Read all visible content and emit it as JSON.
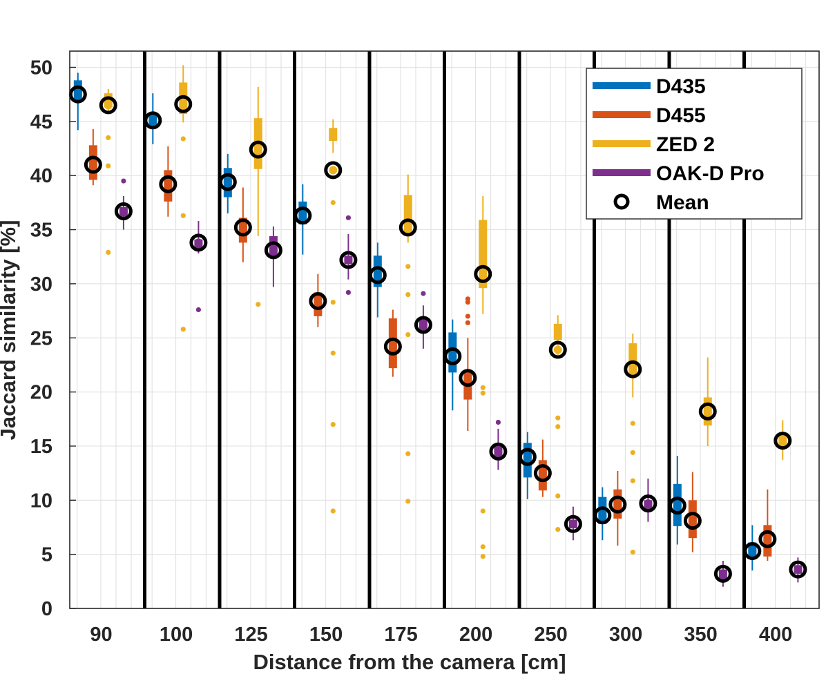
{
  "chart_data": {
    "type": "box",
    "xlabel": "Distance from the camera [cm]",
    "ylabel": "Jaccard similarity [%]",
    "ylim": [
      0,
      51.5
    ],
    "yticks": [
      0,
      5,
      10,
      15,
      20,
      25,
      30,
      35,
      40,
      45,
      50
    ],
    "grid": true,
    "legend_position": "top-right",
    "mean_label": "Mean",
    "categories": [
      "90",
      "100",
      "125",
      "150",
      "175",
      "200",
      "250",
      "300",
      "350",
      "400"
    ],
    "series": [
      {
        "name": "D435",
        "color": "#0072BD",
        "means": [
          47.5,
          45.1,
          39.4,
          36.3,
          30.8,
          23.3,
          14.0,
          8.6,
          9.5,
          5.3
        ],
        "q1": [
          46.8,
          44.5,
          38.0,
          35.5,
          29.7,
          21.8,
          12.1,
          7.8,
          7.6,
          4.8
        ],
        "q3": [
          48.8,
          45.7,
          40.7,
          37.6,
          32.6,
          25.5,
          15.3,
          10.3,
          11.5,
          6.1
        ],
        "whisker_low": [
          44.2,
          42.9,
          36.5,
          32.7,
          26.9,
          18.3,
          10.1,
          6.3,
          5.9,
          3.5
        ],
        "whisker_high": [
          49.5,
          47.6,
          42.0,
          39.2,
          33.8,
          26.7,
          16.3,
          11.2,
          14.1,
          7.7
        ],
        "outliers": [
          [],
          [],
          [],
          [],
          [],
          [],
          [],
          [],
          [],
          []
        ]
      },
      {
        "name": "D455",
        "color": "#D95319",
        "means": [
          41.0,
          39.2,
          35.2,
          28.4,
          24.2,
          21.3,
          12.5,
          9.6,
          8.1,
          6.4
        ],
        "q1": [
          39.6,
          37.6,
          33.8,
          27.0,
          22.2,
          19.3,
          10.9,
          8.3,
          6.5,
          4.8
        ],
        "q3": [
          42.8,
          40.5,
          36.1,
          29.2,
          26.8,
          22.0,
          13.7,
          11.0,
          10.0,
          7.7
        ],
        "whisker_low": [
          39.1,
          36.2,
          32.0,
          26.0,
          21.4,
          16.4,
          10.3,
          5.8,
          5.2,
          4.4
        ],
        "whisker_high": [
          44.3,
          42.7,
          38.9,
          30.9,
          27.6,
          25.0,
          15.6,
          12.7,
          12.6,
          11.0
        ],
        "outliers": [
          [],
          [],
          [],
          [],
          [],
          [
            28.3,
            28.6,
            27.0,
            26.4
          ],
          [],
          [],
          [],
          []
        ]
      },
      {
        "name": "ZED 2",
        "color": "#EDB120",
        "means": [
          46.5,
          46.6,
          42.4,
          40.5,
          35.2,
          30.9,
          23.9,
          22.1,
          18.2,
          15.5
        ],
        "q1": [
          46.3,
          45.7,
          40.6,
          43.2,
          34.5,
          29.6,
          24.8,
          21.6,
          16.9,
          15.0
        ],
        "q3": [
          47.6,
          48.6,
          45.3,
          44.4,
          38.2,
          35.9,
          26.3,
          24.5,
          19.5,
          16.2
        ],
        "whisker_low": [
          45.9,
          44.9,
          34.4,
          42.1,
          33.8,
          27.2,
          23.4,
          19.5,
          15.0,
          13.7
        ],
        "whisker_high": [
          48.0,
          50.2,
          48.2,
          45.2,
          40.1,
          38.1,
          27.1,
          25.4,
          23.2,
          17.4
        ],
        "outliers": [
          [
            43.5,
            40.9,
            32.9
          ],
          [
            43.4,
            36.3,
            25.8
          ],
          [
            28.1
          ],
          [
            37.5,
            28.3,
            23.6,
            17.0,
            9.0
          ],
          [
            31.6,
            29.0,
            25.3,
            14.3,
            9.9
          ],
          [
            20.4,
            19.9,
            9.0,
            5.7,
            4.8
          ],
          [
            17.6,
            16.8,
            10.4,
            7.3
          ],
          [
            17.1,
            14.4,
            11.8,
            5.2
          ],
          [],
          []
        ]
      },
      {
        "name": "OAK-D Pro",
        "color": "#7E2F8E",
        "means": [
          36.7,
          33.8,
          33.1,
          32.2,
          26.2,
          14.5,
          7.8,
          9.7,
          3.2,
          3.6
        ],
        "q1": [
          36.2,
          33.3,
          32.4,
          31.8,
          25.7,
          14.0,
          7.4,
          9.2,
          2.7,
          3.2
        ],
        "q3": [
          37.1,
          34.1,
          34.4,
          32.6,
          26.7,
          15.1,
          8.2,
          10.0,
          3.6,
          4.0
        ],
        "whisker_low": [
          35.0,
          32.8,
          29.7,
          30.4,
          24.0,
          12.8,
          6.3,
          8.0,
          2.0,
          2.4
        ],
        "whisker_high": [
          38.1,
          35.8,
          35.3,
          34.6,
          28.0,
          16.6,
          9.4,
          12.0,
          4.4,
          4.7
        ],
        "outliers": [
          [
            39.5
          ],
          [
            27.6
          ],
          [],
          [
            36.1,
            29.2
          ],
          [
            29.1
          ],
          [
            17.2
          ],
          [],
          [],
          [],
          []
        ]
      }
    ]
  }
}
